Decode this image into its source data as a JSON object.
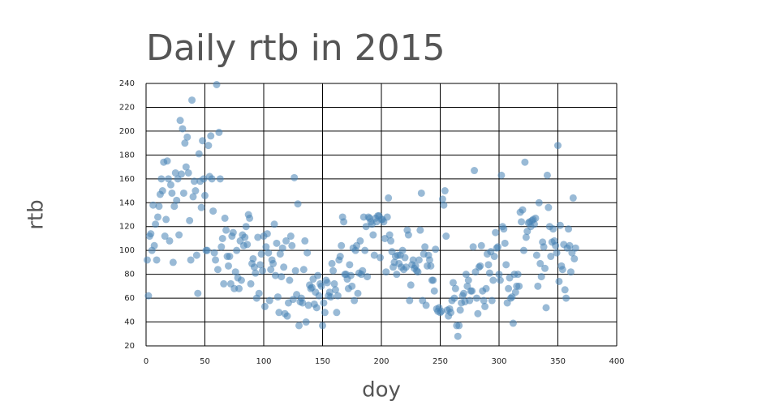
{
  "chart_data": {
    "type": "scatter",
    "title": "Daily rtb in 2015",
    "x_label": "doy",
    "y_label": "rtb",
    "color": "#4682b4",
    "grid": true,
    "xlim": [
      0,
      400
    ],
    "xticks": [
      0,
      50,
      100,
      150,
      200,
      250,
      300,
      350,
      400
    ],
    "ylim": [
      20,
      240
    ],
    "yticks": [
      20,
      40,
      60,
      80,
      100,
      120,
      140,
      160,
      180,
      200,
      220,
      240
    ],
    "x": [
      1,
      2,
      3,
      4,
      5,
      6,
      7,
      8,
      9,
      10,
      11,
      12,
      13,
      14,
      15,
      16,
      17,
      18,
      19,
      20,
      21,
      22,
      23,
      24,
      25,
      26,
      27,
      28,
      29,
      30,
      31,
      32,
      33,
      34,
      35,
      36,
      37,
      38,
      39,
      40,
      41,
      42,
      43,
      44,
      45,
      46,
      47,
      48,
      49,
      50,
      51,
      52,
      53,
      54,
      55,
      56,
      57,
      58,
      59,
      60,
      61,
      62,
      63,
      64,
      65,
      66,
      67,
      68,
      69,
      70,
      71,
      72,
      73,
      74,
      75,
      76,
      77,
      78,
      79,
      80,
      81,
      82,
      83,
      84,
      85,
      86,
      87,
      88,
      89,
      90,
      91,
      92,
      93,
      94,
      95,
      96,
      97,
      98,
      99,
      100,
      101,
      102,
      103,
      104,
      105,
      106,
      107,
      108,
      109,
      110,
      111,
      112,
      113,
      114,
      115,
      116,
      117,
      118,
      119,
      120,
      121,
      122,
      123,
      124,
      125,
      126,
      127,
      128,
      129,
      130,
      131,
      132,
      133,
      134,
      135,
      136,
      137,
      138,
      139,
      140,
      141,
      142,
      143,
      144,
      145,
      146,
      147,
      148,
      149,
      150,
      151,
      152,
      153,
      154,
      155,
      156,
      157,
      158,
      159,
      160,
      161,
      162,
      163,
      164,
      165,
      166,
      167,
      168,
      169,
      170,
      171,
      172,
      173,
      174,
      175,
      176,
      177,
      178,
      179,
      180,
      181,
      182,
      183,
      184,
      185,
      186,
      187,
      188,
      189,
      190,
      191,
      192,
      193,
      194,
      195,
      196,
      197,
      198,
      199,
      200,
      201,
      202,
      203,
      204,
      205,
      206,
      207,
      208,
      209,
      210,
      211,
      212,
      213,
      214,
      215,
      216,
      217,
      218,
      219,
      220,
      221,
      222,
      223,
      224,
      225,
      226,
      227,
      228,
      229,
      230,
      231,
      232,
      233,
      234,
      235,
      236,
      237,
      238,
      239,
      240,
      241,
      242,
      243,
      244,
      245,
      246,
      247,
      248,
      249,
      250,
      251,
      252,
      253,
      254,
      255,
      256,
      257,
      258,
      259,
      260,
      261,
      262,
      263,
      264,
      265,
      266,
      267,
      268,
      269,
      270,
      271,
      272,
      273,
      274,
      275,
      276,
      277,
      278,
      279,
      280,
      281,
      282,
      283,
      284,
      285,
      286,
      287,
      288,
      289,
      290,
      291,
      292,
      293,
      294,
      295,
      296,
      297,
      298,
      299,
      300,
      301,
      302,
      303,
      304,
      305,
      306,
      307,
      308,
      309,
      310,
      311,
      312,
      313,
      314,
      315,
      316,
      317,
      318,
      319,
      320,
      321,
      322,
      323,
      324,
      325,
      326,
      327,
      328,
      329,
      330,
      331,
      332,
      333,
      334,
      335,
      336,
      337,
      338,
      339,
      340,
      341,
      342,
      343,
      344,
      345,
      346,
      347,
      348,
      349,
      350,
      351,
      352,
      353,
      354,
      355,
      356,
      357,
      358,
      359,
      360,
      361,
      362,
      363,
      364,
      365
    ],
    "values": [
      92,
      62,
      112,
      114,
      100,
      138,
      104,
      122,
      92,
      128,
      137,
      147,
      160,
      150,
      174,
      112,
      126,
      175,
      160,
      108,
      155,
      148,
      90,
      137,
      165,
      142,
      160,
      113,
      209,
      164,
      202,
      148,
      190,
      170,
      195,
      165,
      125,
      92,
      226,
      145,
      158,
      150,
      96,
      64,
      181,
      158,
      136,
      192,
      160,
      146,
      100,
      100,
      188,
      162,
      196,
      160,
      133,
      98,
      92,
      239,
      84,
      199,
      160,
      103,
      110,
      72,
      127,
      117,
      95,
      87,
      95,
      72,
      112,
      115,
      68,
      82,
      100,
      77,
      68,
      108,
      75,
      113,
      104,
      111,
      120,
      105,
      130,
      127,
      72,
      89,
      93,
      86,
      81,
      60,
      111,
      64,
      88,
      97,
      83,
      112,
      53,
      103,
      114,
      98,
      58,
      84,
      92,
      89,
      122,
      79,
      106,
      61,
      48,
      97,
      78,
      102,
      86,
      47,
      108,
      45,
      56,
      75,
      112,
      104,
      59,
      161,
      83,
      63,
      139,
      37,
      57,
      60,
      56,
      84,
      108,
      40,
      98,
      54,
      71,
      68,
      69,
      76,
      55,
      65,
      52,
      79,
      62,
      72,
      70,
      37,
      56,
      48,
      75,
      73,
      62,
      65,
      61,
      89,
      83,
      72,
      67,
      48,
      62,
      92,
      95,
      104,
      128,
      124,
      80,
      80,
      76,
      68,
      88,
      79,
      70,
      102,
      58,
      100,
      104,
      64,
      81,
      108,
      80,
      83,
      128,
      100,
      120,
      78,
      128,
      127,
      124,
      122,
      113,
      96,
      127,
      124,
      129,
      129,
      94,
      126,
      126,
      124,
      110,
      82,
      128,
      144,
      113,
      108,
      99,
      86,
      90,
      95,
      80,
      96,
      89,
      96,
      86,
      100,
      84,
      94,
      86,
      117,
      113,
      58,
      71,
      88,
      92,
      85,
      87,
      83,
      82,
      92,
      117,
      148,
      58,
      97,
      103,
      54,
      87,
      96,
      92,
      87,
      75,
      75,
      66,
      101,
      51,
      49,
      52,
      48,
      49,
      143,
      138,
      150,
      112,
      50,
      45,
      51,
      48,
      58,
      73,
      60,
      68,
      37,
      28,
      37,
      50,
      56,
      62,
      64,
      57,
      80,
      70,
      75,
      58,
      66,
      66,
      103,
      167,
      82,
      60,
      47,
      86,
      87,
      104,
      66,
      58,
      53,
      68,
      97,
      88,
      81,
      99,
      58,
      75,
      95,
      115,
      102,
      103,
      80,
      75,
      163,
      120,
      118,
      106,
      88,
      56,
      68,
      77,
      60,
      61,
      39,
      80,
      65,
      70,
      80,
      70,
      132,
      124,
      134,
      100,
      174,
      111,
      116,
      123,
      124,
      120,
      125,
      126,
      122,
      127,
      96,
      70,
      140,
      89,
      78,
      107,
      103,
      85,
      52,
      163,
      136,
      120,
      95,
      107,
      118,
      108,
      104,
      98,
      188,
      74,
      121,
      87,
      84,
      105,
      67,
      60,
      102,
      118,
      104,
      82,
      98,
      144,
      93,
      102
    ]
  }
}
